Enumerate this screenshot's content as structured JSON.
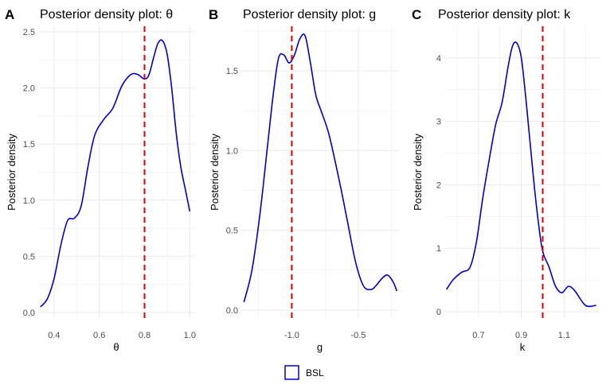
{
  "colors": {
    "density": "#0000CC",
    "vline": "#DD0000",
    "grid": "#EBEBEB"
  },
  "legend": {
    "label": "BSL"
  },
  "chart_data": [
    {
      "type": "line",
      "panel": "A",
      "title": "Posterior density plot: θ",
      "xlabel": "θ",
      "ylabel": "Posterior density",
      "xlim": [
        0.33,
        1.02
      ],
      "ylim": [
        -0.05,
        2.55
      ],
      "xticks": [
        0.4,
        0.6,
        0.8,
        1.0
      ],
      "xtick_labels": [
        "0.4",
        "0.6",
        "0.8",
        "1.0"
      ],
      "yticks": [
        0.0,
        0.5,
        1.0,
        1.5,
        2.0,
        2.5
      ],
      "ytick_labels": [
        "0.0",
        "0.5",
        "1.0",
        "1.5",
        "2.0",
        "2.5"
      ],
      "vline": 0.8,
      "series": [
        {
          "x": [
            0.34,
            0.37,
            0.4,
            0.43,
            0.46,
            0.49,
            0.52,
            0.55,
            0.58,
            0.62,
            0.66,
            0.7,
            0.74,
            0.77,
            0.8,
            0.82,
            0.84,
            0.86,
            0.88,
            0.9,
            0.92,
            0.94,
            0.96,
            0.98,
            1.0
          ],
          "y": [
            0.05,
            0.12,
            0.3,
            0.6,
            0.82,
            0.84,
            0.95,
            1.3,
            1.58,
            1.72,
            1.82,
            2.02,
            2.12,
            2.12,
            2.08,
            2.12,
            2.27,
            2.4,
            2.42,
            2.3,
            2.0,
            1.6,
            1.3,
            1.1,
            0.9
          ]
        }
      ]
    },
    {
      "type": "line",
      "panel": "B",
      "title": "Posterior density plot: g",
      "xlabel": "g",
      "ylabel": "Posterior density",
      "xlim": [
        -1.38,
        -0.2
      ],
      "ylim": [
        -0.05,
        1.78
      ],
      "xticks": [
        -1.0,
        -0.5
      ],
      "xtick_labels": [
        "-1.0",
        "-0.5"
      ],
      "yticks": [
        0.0,
        0.5,
        1.0,
        1.5
      ],
      "ytick_labels": [
        "0.0",
        "0.5",
        "1.0",
        "1.5"
      ],
      "vline": -1.0,
      "series": [
        {
          "x": [
            -1.36,
            -1.3,
            -1.24,
            -1.18,
            -1.14,
            -1.1,
            -1.06,
            -1.02,
            -0.98,
            -0.94,
            -0.9,
            -0.86,
            -0.82,
            -0.78,
            -0.72,
            -0.64,
            -0.58,
            -0.52,
            -0.46,
            -0.4,
            -0.36,
            -0.32,
            -0.28,
            -0.24,
            -0.21
          ],
          "y": [
            0.05,
            0.25,
            0.6,
            1.05,
            1.35,
            1.58,
            1.6,
            1.55,
            1.6,
            1.7,
            1.72,
            1.55,
            1.35,
            1.25,
            1.1,
            0.8,
            0.55,
            0.3,
            0.15,
            0.13,
            0.16,
            0.2,
            0.22,
            0.18,
            0.12
          ]
        }
      ]
    },
    {
      "type": "line",
      "panel": "C",
      "title": "Posterior density plot: k",
      "xlabel": "k",
      "ylabel": "Posterior density",
      "xlim": [
        0.54,
        1.27
      ],
      "ylim": [
        -0.1,
        4.5
      ],
      "xticks": [
        0.7,
        0.9,
        1.1
      ],
      "xtick_labels": [
        "0.7",
        "0.9",
        "1.1"
      ],
      "yticks": [
        0,
        1,
        2,
        3,
        4
      ],
      "ytick_labels": [
        "0",
        "1",
        "2",
        "3",
        "4"
      ],
      "vline": 1.0,
      "series": [
        {
          "x": [
            0.55,
            0.58,
            0.62,
            0.66,
            0.69,
            0.72,
            0.75,
            0.78,
            0.81,
            0.84,
            0.86,
            0.88,
            0.9,
            0.92,
            0.94,
            0.96,
            0.98,
            1.0,
            1.03,
            1.06,
            1.09,
            1.12,
            1.15,
            1.2,
            1.25
          ],
          "y": [
            0.35,
            0.5,
            0.62,
            0.7,
            1.1,
            1.8,
            2.4,
            2.95,
            3.3,
            3.9,
            4.2,
            4.23,
            4.0,
            3.4,
            2.7,
            2.0,
            1.4,
            0.95,
            0.7,
            0.4,
            0.3,
            0.4,
            0.33,
            0.1,
            0.1
          ]
        }
      ]
    }
  ]
}
